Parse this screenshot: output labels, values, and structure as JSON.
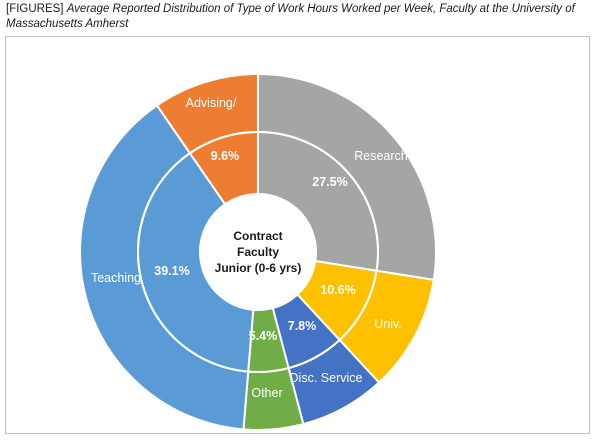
{
  "figure": {
    "title_prefix": "[FIGURES]",
    "title_text": "Average Reported Distribution of Type of Work Hours Worked per Week, Faculty at the University of Massachusetts Amherst"
  },
  "chart_data": {
    "type": "pie",
    "variant": "doughnut",
    "center_label": [
      "Contract",
      "Faculty",
      "Junior (0-6 yrs)"
    ],
    "categories": [
      "Research",
      "Univ.",
      "Disc. Service",
      "Other",
      "Teaching",
      "Advising/"
    ],
    "inner_percent_labels": [
      "27.5%",
      "10.6%",
      "7.8%",
      "5.4%",
      "39.1%",
      "9.6%"
    ],
    "values": [
      27.5,
      10.6,
      7.8,
      5.4,
      39.1,
      9.6
    ],
    "colors": [
      "#a5a5a5",
      "#ffc000",
      "#4472c4",
      "#70ad47",
      "#5b9bd5",
      "#ed7d31"
    ],
    "start_angle_deg": 0,
    "direction": "clockwise"
  }
}
